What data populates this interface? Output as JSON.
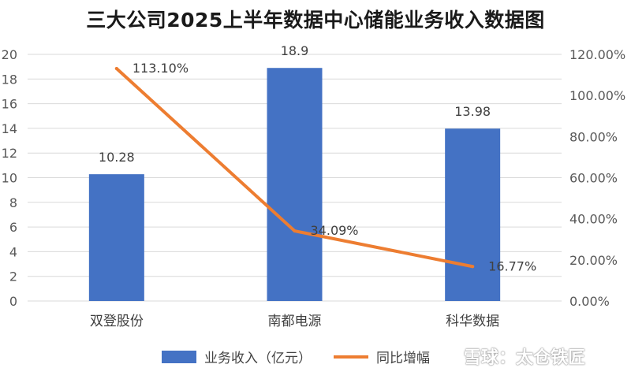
{
  "chart_data": {
    "type": "bar",
    "title": "三大公司2025上半年数据中心储能业务收入数据图",
    "categories": [
      "双登股份",
      "南都电源",
      "科华数据"
    ],
    "series": [
      {
        "name": "业务收入（亿元）",
        "type": "bar",
        "axis": "left",
        "color": "#4472C4",
        "values": [
          10.28,
          18.9,
          13.98
        ],
        "labels": [
          "10.28",
          "18.9",
          "13.98"
        ]
      },
      {
        "name": "同比增幅",
        "type": "line",
        "axis": "right",
        "color": "#ED7D31",
        "values": [
          113.1,
          34.09,
          16.77
        ],
        "labels": [
          "113.10%",
          "34.09%",
          "16.77%"
        ]
      }
    ],
    "y_left": {
      "lim": [
        0,
        20
      ],
      "ticks": [
        "0",
        "2",
        "4",
        "6",
        "8",
        "10",
        "12",
        "14",
        "16",
        "18",
        "20"
      ]
    },
    "y_right": {
      "lim": [
        0,
        120
      ],
      "ticks": [
        "0.00%",
        "20.00%",
        "40.00%",
        "60.00%",
        "80.00%",
        "100.00%",
        "120.00%"
      ]
    },
    "grid": "horizontal",
    "legend": "bottom"
  },
  "watermark": "雪球：太仓铁匠"
}
